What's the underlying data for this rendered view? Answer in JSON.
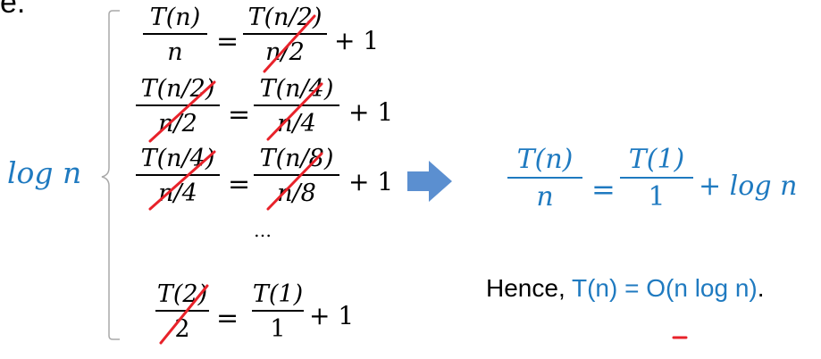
{
  "top_fragment": "e.",
  "label_left": "log n",
  "equations": [
    {
      "lhs_num": "T(n)",
      "lhs_den": "n",
      "rhs_num": "T(n/2)",
      "rhs_den": "n/2",
      "tail": "+ 1"
    },
    {
      "lhs_num": "T(n/2)",
      "lhs_den": "n/2",
      "rhs_num": "T(n/4)",
      "rhs_den": "n/4",
      "tail": "+ 1"
    },
    {
      "lhs_num": "T(n/4)",
      "lhs_den": "n/4",
      "rhs_num": "T(n/8)",
      "rhs_den": "n/8",
      "tail": "+ 1"
    },
    {
      "lhs_num": "T(2)",
      "lhs_den": "2",
      "rhs_num": "T(1)",
      "rhs_den": "1",
      "tail": "+ 1"
    }
  ],
  "ellipsis": "…",
  "equals": "=",
  "result": {
    "lhs_num": "T(n)",
    "lhs_den": "n",
    "rhs_num": "T(1)",
    "rhs_den": "1",
    "tail": "+ log n"
  },
  "conclusion": {
    "prefix": "Hence, ",
    "highlight": "T(n) = O(n log n)",
    "suffix": "."
  },
  "colors": {
    "blue": "#1f7ac0",
    "red": "#e8222a",
    "arrow": "#5b8fd0",
    "brace": "#a9a9a9"
  }
}
